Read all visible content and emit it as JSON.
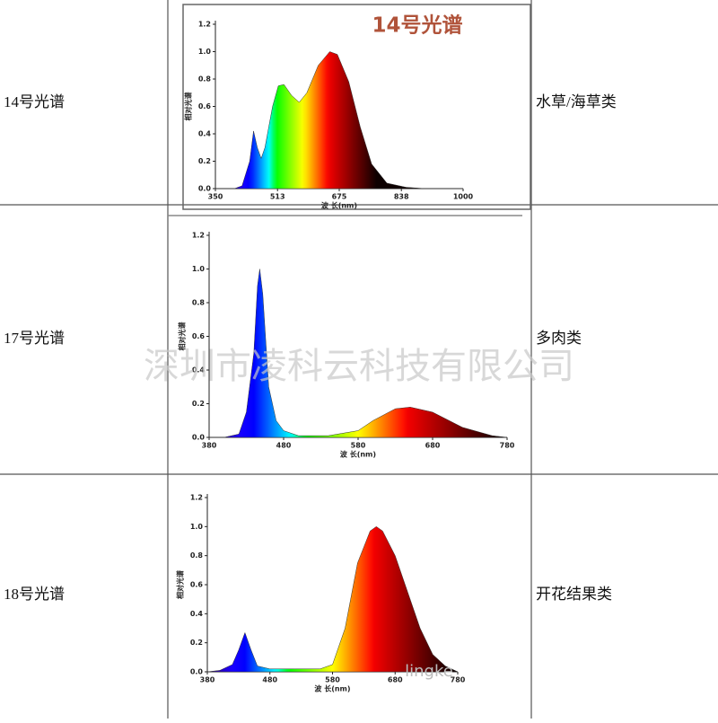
{
  "table": {
    "rows": [
      {
        "label": "14号光谱",
        "category": "水草/海草类",
        "chart": {
          "type": "area",
          "title": "14号光谱",
          "y_label": "相对光谱",
          "x_label": "波 长(nm)",
          "xlim": [
            350,
            1000
          ],
          "xticks": [
            350,
            513,
            675,
            838,
            1000
          ],
          "ylim": [
            0,
            1.2
          ],
          "yticks": [
            {
              "value": 0,
              "label": "0.0"
            },
            0.2,
            0.4,
            0.6,
            0.8,
            {
              "value": 1,
              "label": "1.0"
            },
            1.2
          ],
          "x": [
            350,
            400,
            420,
            440,
            450,
            460,
            470,
            480,
            500,
            515,
            530,
            550,
            570,
            590,
            620,
            650,
            670,
            700,
            730,
            760,
            800,
            850,
            900,
            1000
          ],
          "values": [
            0,
            0,
            0.02,
            0.2,
            0.42,
            0.3,
            0.22,
            0.3,
            0.6,
            0.75,
            0.76,
            0.68,
            0.63,
            0.7,
            0.9,
            1.0,
            0.98,
            0.78,
            0.45,
            0.18,
            0.04,
            0.01,
            0,
            0
          ]
        }
      },
      {
        "label": "17号光谱",
        "category": "多肉类",
        "chart": {
          "type": "area",
          "y_label": "相对光谱",
          "x_label": "波 长(nm)",
          "xlim": [
            380,
            780
          ],
          "xticks": [
            380,
            480,
            580,
            680,
            780
          ],
          "ylim": [
            0,
            1.2
          ],
          "yticks": [
            {
              "value": 0,
              "label": "0.0"
            },
            0.2,
            0.4,
            0.6,
            0.8,
            {
              "value": 1,
              "label": "1.0"
            },
            1.2
          ],
          "x": [
            380,
            400,
            420,
            430,
            440,
            445,
            448,
            452,
            460,
            470,
            480,
            500,
            540,
            580,
            600,
            630,
            650,
            680,
            720,
            760,
            780
          ],
          "values": [
            0,
            0,
            0.02,
            0.15,
            0.5,
            0.9,
            1.0,
            0.85,
            0.3,
            0.1,
            0.04,
            0.01,
            0.01,
            0.04,
            0.1,
            0.17,
            0.18,
            0.15,
            0.06,
            0.01,
            0
          ]
        }
      },
      {
        "label": "18号光谱",
        "category": "开花结果类",
        "chart": {
          "type": "area",
          "y_label": "相对光谱",
          "x_label": "波 长(nm)",
          "xlim": [
            380,
            780
          ],
          "xticks": [
            380,
            480,
            580,
            680,
            780
          ],
          "ylim": [
            0,
            1.2
          ],
          "yticks": [
            {
              "value": 0,
              "label": "0.0"
            },
            0.2,
            0.4,
            0.6,
            0.8,
            {
              "value": 1,
              "label": "1.0"
            },
            1.2
          ],
          "x": [
            380,
            400,
            420,
            430,
            440,
            450,
            460,
            480,
            520,
            560,
            580,
            600,
            620,
            640,
            650,
            660,
            680,
            700,
            720,
            740,
            760,
            780
          ],
          "values": [
            0,
            0.01,
            0.05,
            0.15,
            0.27,
            0.15,
            0.04,
            0.02,
            0.02,
            0.02,
            0.05,
            0.3,
            0.75,
            0.97,
            1.0,
            0.97,
            0.8,
            0.55,
            0.3,
            0.12,
            0.04,
            0
          ]
        }
      }
    ]
  },
  "watermark": "深圳市凌科云科技有限公司",
  "watermark_small": "lingke"
}
